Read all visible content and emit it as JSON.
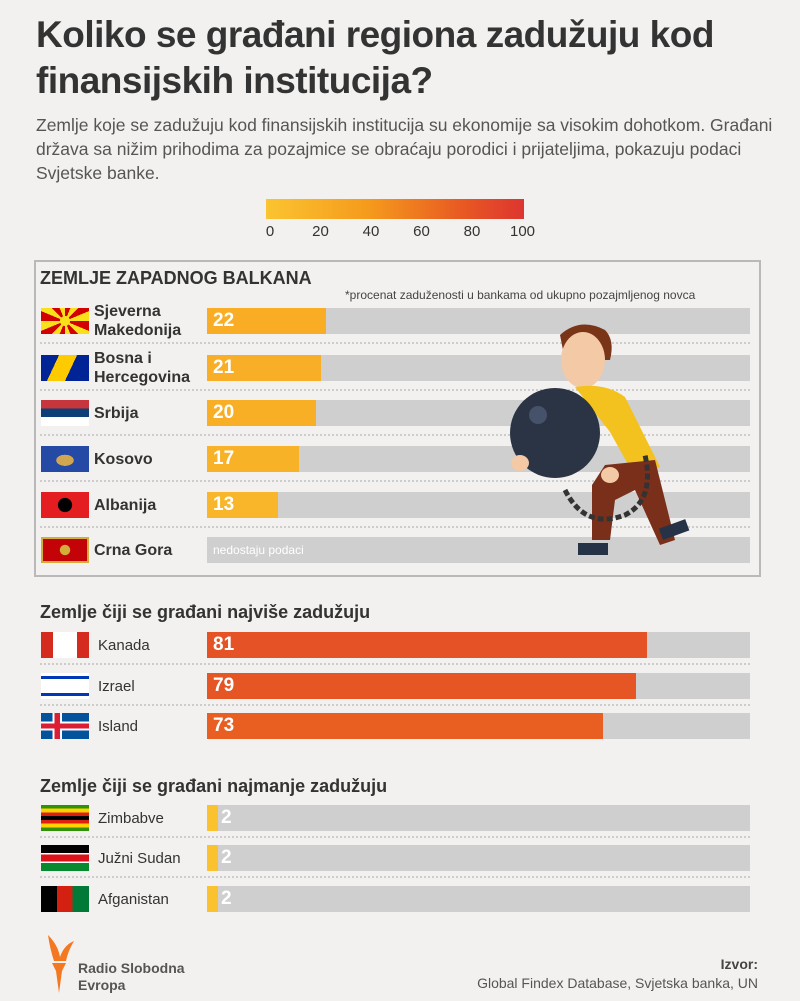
{
  "title": "Koliko se građani regiona zadužuju kod finansijskih institucija?",
  "subtitle": "Zemlje koje se zadužuju kod finansijskih institucija su ekonomije sa visokim dohotkom. Građani država sa nižim prihodima za pozajmice se obraćaju porodici i prijateljima, pokazuju podaci Svjetske banke.",
  "chart_data": {
    "type": "bar",
    "orientation": "horizontal",
    "xlim": [
      0,
      100
    ],
    "color_scale": {
      "ticks": [
        "0",
        "20",
        "40",
        "60",
        "80",
        "100"
      ],
      "colors": [
        "#fbc430",
        "#f59a1c",
        "#e85b22",
        "#dd3530"
      ]
    },
    "groups": [
      {
        "title": "ZEMLJE ZAPADNOG BALKANA",
        "note": "*procenat zaduženosti u bankama od ukupno pozajmljenog novca",
        "rows": [
          {
            "country": "Sjeverna Makedonija",
            "flag": "mk",
            "value": 22,
            "label": "22"
          },
          {
            "country": "Bosna i Hercegovina",
            "flag": "ba",
            "value": 21,
            "label": "21"
          },
          {
            "country": "Srbija",
            "flag": "rs",
            "value": 20,
            "label": "20"
          },
          {
            "country": "Kosovo",
            "flag": "xk",
            "value": 17,
            "label": "17"
          },
          {
            "country": "Albanija",
            "flag": "al",
            "value": 13,
            "label": "13"
          },
          {
            "country": "Crna Gora",
            "flag": "me",
            "value": null,
            "label": "nedostaju podaci"
          }
        ]
      },
      {
        "title": "Zemlje čiji se građani najviše zadužuju",
        "rows": [
          {
            "country": "Kanada",
            "flag": "ca",
            "value": 81,
            "label": "81"
          },
          {
            "country": "Izrael",
            "flag": "il",
            "value": 79,
            "label": "79"
          },
          {
            "country": "Island",
            "flag": "is",
            "value": 73,
            "label": "73"
          }
        ]
      },
      {
        "title": "Zemlje čiji se građani najmanje zadužuju",
        "rows": [
          {
            "country": "Zimbabve",
            "flag": "zw",
            "value": 2,
            "label": "2"
          },
          {
            "country": "Južni Sudan",
            "flag": "ss",
            "value": 2,
            "label": "2"
          },
          {
            "country": "Afganistan",
            "flag": "af",
            "value": 2,
            "label": "2"
          }
        ]
      }
    ]
  },
  "footer": {
    "logo": "Radio Slobodna Evropa",
    "source_label": "Izvor:",
    "source": "Global Findex Database, Svjetska banka, UN"
  }
}
